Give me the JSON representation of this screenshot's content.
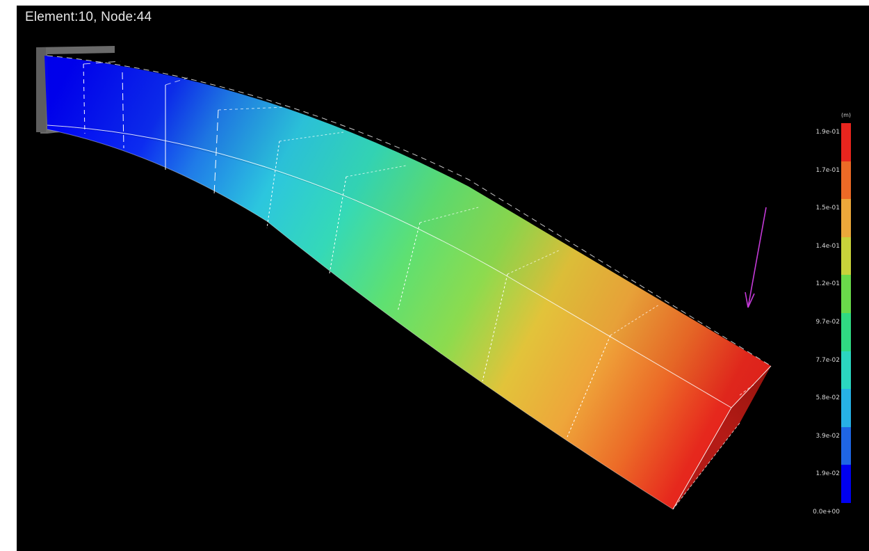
{
  "status_text": "Element:10, Node:44",
  "legend": {
    "unit": "(m)",
    "labels": [
      "1.9e-01",
      "1.7e-01",
      "1.5e-01",
      "1.4e-01",
      "1.2e-01",
      "9.7e-02",
      "7.7e-02",
      "5.8e-02",
      "3.9e-02",
      "1.9e-02",
      "0.0e+00"
    ],
    "colors": [
      "#e8251e",
      "#ec6a26",
      "#eca83a",
      "#c8d23a",
      "#6ad94a",
      "#30d982",
      "#2bd6c0",
      "#27b1e6",
      "#1f66e4",
      "#0000f0"
    ]
  },
  "colors": {
    "background": "#000000",
    "support": "#6a6a6a",
    "load_arrow": "#c43ad8",
    "mesh_lines": "#ffffff"
  },
  "icons": {
    "support": "fixed-support-icon",
    "load": "load-arrow-icon"
  }
}
